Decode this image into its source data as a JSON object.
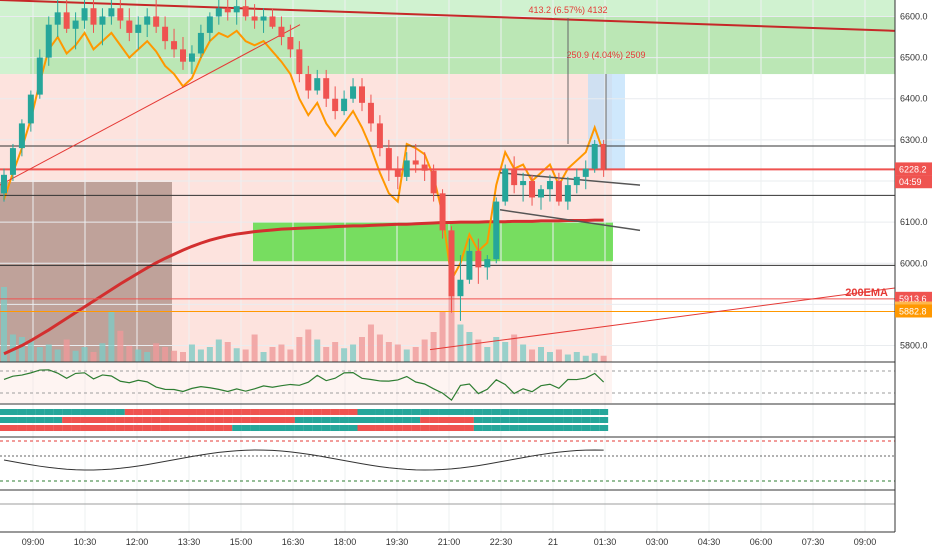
{
  "chart_data": {
    "type": "candlestick",
    "title": "",
    "colors": {
      "up": "#26a69a",
      "down": "#ef5350",
      "ema200": "#d32f2f",
      "ema_orange": "#ff9800",
      "sar": "#4caf50",
      "zone_green": "#00c853",
      "zone_red": "#ffcdd2",
      "box_brown": "#8d6e63",
      "box_blue": "#bbdefb"
    },
    "x_axis": {
      "tick_labels": [
        "09:00",
        "10:30",
        "12:00",
        "13:30",
        "15:00",
        "16:30",
        "18:00",
        "19:30",
        "21:00",
        "22:30",
        "21",
        "01:30",
        "03:00",
        "04:30",
        "06:00",
        "07:30",
        "09:00"
      ]
    },
    "price_axis": {
      "ylim": [
        5760,
        6640
      ],
      "tick_values": [
        5800,
        5900,
        6000,
        6100,
        6200,
        6300,
        6400,
        6500,
        6600
      ],
      "tick_labels": [
        "5800.0",
        "5900.0",
        "6000.0",
        "6100.0",
        "6200.0",
        "6300.0",
        "6400.0",
        "6500.0",
        "6600.0"
      ],
      "badges": [
        {
          "label": "6228.2",
          "value": 6228.2,
          "color": "#ef5350"
        },
        {
          "label": "04:59",
          "value": 6197,
          "color": "#ef5350"
        },
        {
          "label": "5913.6",
          "value": 5913.6,
          "color": "#ef5350"
        },
        {
          "label": "(5882.82)",
          "value": 5890,
          "color": "#ffb74d"
        },
        {
          "label": "5882.8",
          "value": 5882.8,
          "color": "#ff9800"
        }
      ]
    },
    "indicator_labels": {
      "ema": "200EMA",
      "measure_large": "413.2 (6.57%) 4132",
      "measure_small": "250.9 (4.04%) 2509"
    },
    "horizontal_levels": [
      6285,
      6228.2,
      6165,
      5995,
      5913.6,
      5882.8
    ],
    "candles": [
      [
        6170,
        6230,
        6150,
        6215
      ],
      [
        6215,
        6290,
        6200,
        6280
      ],
      [
        6280,
        6350,
        6260,
        6340
      ],
      [
        6340,
        6420,
        6320,
        6410
      ],
      [
        6410,
        6520,
        6400,
        6500
      ],
      [
        6500,
        6600,
        6480,
        6580
      ],
      [
        6580,
        6640,
        6550,
        6610
      ],
      [
        6610,
        6640,
        6560,
        6570
      ],
      [
        6570,
        6610,
        6520,
        6590
      ],
      [
        6590,
        6640,
        6570,
        6620
      ],
      [
        6620,
        6640,
        6560,
        6580
      ],
      [
        6580,
        6620,
        6530,
        6600
      ],
      [
        6600,
        6640,
        6580,
        6620
      ],
      [
        6620,
        6640,
        6570,
        6590
      ],
      [
        6590,
        6620,
        6540,
        6560
      ],
      [
        6560,
        6600,
        6520,
        6580
      ],
      [
        6580,
        6620,
        6550,
        6600
      ],
      [
        6600,
        6640,
        6560,
        6575
      ],
      [
        6575,
        6600,
        6520,
        6540
      ],
      [
        6540,
        6570,
        6500,
        6520
      ],
      [
        6520,
        6550,
        6470,
        6490
      ],
      [
        6490,
        6530,
        6460,
        6510
      ],
      [
        6510,
        6580,
        6500,
        6560
      ],
      [
        6560,
        6610,
        6540,
        6600
      ],
      [
        6600,
        6640,
        6580,
        6620
      ],
      [
        6620,
        6640,
        6590,
        6610
      ],
      [
        6610,
        6640,
        6580,
        6625
      ],
      [
        6625,
        6640,
        6590,
        6600
      ],
      [
        6600,
        6630,
        6570,
        6590
      ],
      [
        6590,
        6620,
        6560,
        6600
      ],
      [
        6600,
        6620,
        6570,
        6575
      ],
      [
        6575,
        6600,
        6530,
        6550
      ],
      [
        6550,
        6580,
        6500,
        6520
      ],
      [
        6520,
        6540,
        6440,
        6460
      ],
      [
        6460,
        6480,
        6400,
        6420
      ],
      [
        6420,
        6470,
        6410,
        6450
      ],
      [
        6450,
        6470,
        6380,
        6400
      ],
      [
        6400,
        6430,
        6350,
        6370
      ],
      [
        6370,
        6420,
        6360,
        6400
      ],
      [
        6400,
        6450,
        6390,
        6430
      ],
      [
        6430,
        6450,
        6370,
        6390
      ],
      [
        6390,
        6410,
        6320,
        6340
      ],
      [
        6340,
        6360,
        6260,
        6280
      ],
      [
        6280,
        6300,
        6200,
        6230
      ],
      [
        6230,
        6260,
        6180,
        6210
      ],
      [
        6210,
        6270,
        6200,
        6250
      ],
      [
        6250,
        6290,
        6220,
        6240
      ],
      [
        6240,
        6270,
        6200,
        6225
      ],
      [
        6225,
        6240,
        6150,
        6170
      ],
      [
        6170,
        6180,
        6060,
        6080
      ],
      [
        6080,
        6090,
        5880,
        5920
      ],
      [
        5920,
        6020,
        5860,
        5960
      ],
      [
        5960,
        6060,
        5950,
        6030
      ],
      [
        6030,
        6060,
        5950,
        5990
      ],
      [
        5990,
        6020,
        5960,
        6010
      ],
      [
        6010,
        6160,
        6000,
        6150
      ],
      [
        6150,
        6240,
        6140,
        6230
      ],
      [
        6230,
        6260,
        6170,
        6190
      ],
      [
        6190,
        6220,
        6150,
        6200
      ],
      [
        6200,
        6215,
        6140,
        6160
      ],
      [
        6160,
        6190,
        6130,
        6180
      ],
      [
        6180,
        6215,
        6150,
        6200
      ],
      [
        6200,
        6220,
        6140,
        6150
      ],
      [
        6150,
        6210,
        6130,
        6190
      ],
      [
        6190,
        6230,
        6170,
        6210
      ],
      [
        6210,
        6250,
        6180,
        6230
      ],
      [
        6230,
        6300,
        6220,
        6290
      ],
      [
        6290,
        6300,
        6210,
        6228
      ]
    ],
    "volume": [
      60,
      22,
      20,
      18,
      12,
      14,
      10,
      18,
      9,
      12,
      8,
      15,
      40,
      25,
      13,
      10,
      8,
      15,
      12,
      9,
      8,
      14,
      10,
      12,
      18,
      16,
      11,
      10,
      22,
      8,
      12,
      14,
      10,
      20,
      26,
      18,
      12,
      16,
      11,
      14,
      20,
      30,
      22,
      16,
      14,
      10,
      12,
      18,
      24,
      40,
      54,
      30,
      24,
      18,
      12,
      20,
      16,
      22,
      14,
      10,
      12,
      8,
      10,
      6,
      8,
      5,
      7,
      5
    ],
    "ema200": [
      5780,
      5790,
      5800,
      5812,
      5825,
      5838,
      5852,
      5866,
      5880,
      5894,
      5908,
      5922,
      5936,
      5950,
      5963,
      5976,
      5989,
      6001,
      6012,
      6022,
      6032,
      6041,
      6049,
      6056,
      6062,
      6067,
      6071,
      6074,
      6077,
      6079,
      6081,
      6083,
      6084,
      6085,
      6086,
      6087,
      6088,
      6089,
      6090,
      6091,
      6091,
      6092,
      6093,
      6094,
      6095,
      6095,
      6096,
      6097,
      6098,
      6099,
      6099,
      6100,
      6100,
      6100,
      6101,
      6101,
      6101,
      6102,
      6102,
      6102,
      6103,
      6103,
      6103,
      6104,
      6104,
      6104,
      6105,
      6105
    ]
  }
}
